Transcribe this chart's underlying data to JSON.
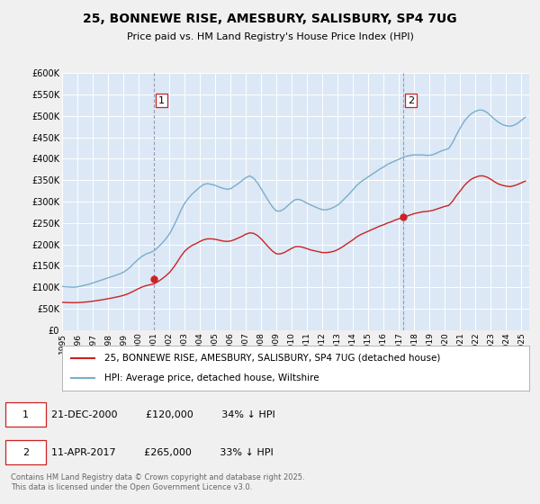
{
  "title": "25, BONNEWE RISE, AMESBURY, SALISBURY, SP4 7UG",
  "subtitle": "Price paid vs. HM Land Registry's House Price Index (HPI)",
  "ylim": [
    0,
    600000
  ],
  "xlim_start": 1995.0,
  "xlim_end": 2025.5,
  "yticks": [
    0,
    50000,
    100000,
    150000,
    200000,
    250000,
    300000,
    350000,
    400000,
    450000,
    500000,
    550000,
    600000
  ],
  "ytick_labels": [
    "£0",
    "£50K",
    "£100K",
    "£150K",
    "£200K",
    "£250K",
    "£300K",
    "£350K",
    "£400K",
    "£450K",
    "£500K",
    "£550K",
    "£600K"
  ],
  "fig_facecolor": "#f0f0f0",
  "plot_background": "#dce8f5",
  "grid_color": "#ffffff",
  "red_line_color": "#cc2222",
  "blue_line_color": "#7aadcc",
  "vline_color": "#aaaacc",
  "marker1_year": 2001.0,
  "marker1_price": 120000,
  "marker2_year": 2017.27,
  "marker2_price": 265000,
  "legend_label_red": "25, BONNEWE RISE, AMESBURY, SALISBURY, SP4 7UG (detached house)",
  "legend_label_blue": "HPI: Average price, detached house, Wiltshire",
  "footer": "Contains HM Land Registry data © Crown copyright and database right 2025.\nThis data is licensed under the Open Government Licence v3.0.",
  "hpi_data": [
    [
      1995.0,
      102000
    ],
    [
      1995.25,
      101000
    ],
    [
      1995.5,
      100500
    ],
    [
      1995.75,
      100000
    ],
    [
      1996.0,
      101000
    ],
    [
      1996.25,
      103000
    ],
    [
      1996.5,
      105000
    ],
    [
      1996.75,
      107000
    ],
    [
      1997.0,
      110000
    ],
    [
      1997.25,
      113000
    ],
    [
      1997.5,
      116000
    ],
    [
      1997.75,
      119000
    ],
    [
      1998.0,
      122000
    ],
    [
      1998.25,
      125000
    ],
    [
      1998.5,
      128000
    ],
    [
      1998.75,
      131000
    ],
    [
      1999.0,
      135000
    ],
    [
      1999.25,
      141000
    ],
    [
      1999.5,
      149000
    ],
    [
      1999.75,
      158000
    ],
    [
      2000.0,
      166000
    ],
    [
      2000.25,
      173000
    ],
    [
      2000.5,
      178000
    ],
    [
      2000.75,
      181000
    ],
    [
      2001.0,
      185000
    ],
    [
      2001.25,
      193000
    ],
    [
      2001.5,
      202000
    ],
    [
      2001.75,
      212000
    ],
    [
      2002.0,
      224000
    ],
    [
      2002.25,
      240000
    ],
    [
      2002.5,
      259000
    ],
    [
      2002.75,
      279000
    ],
    [
      2003.0,
      296000
    ],
    [
      2003.25,
      308000
    ],
    [
      2003.5,
      318000
    ],
    [
      2003.75,
      326000
    ],
    [
      2004.0,
      334000
    ],
    [
      2004.25,
      340000
    ],
    [
      2004.5,
      342000
    ],
    [
      2004.75,
      340000
    ],
    [
      2005.0,
      338000
    ],
    [
      2005.25,
      334000
    ],
    [
      2005.5,
      331000
    ],
    [
      2005.75,
      329000
    ],
    [
      2006.0,
      330000
    ],
    [
      2006.25,
      336000
    ],
    [
      2006.5,
      342000
    ],
    [
      2006.75,
      349000
    ],
    [
      2007.0,
      356000
    ],
    [
      2007.25,
      360000
    ],
    [
      2007.5,
      355000
    ],
    [
      2007.75,
      344000
    ],
    [
      2008.0,
      330000
    ],
    [
      2008.25,
      315000
    ],
    [
      2008.5,
      300000
    ],
    [
      2008.75,
      287000
    ],
    [
      2009.0,
      278000
    ],
    [
      2009.25,
      278000
    ],
    [
      2009.5,
      283000
    ],
    [
      2009.75,
      291000
    ],
    [
      2010.0,
      299000
    ],
    [
      2010.25,
      305000
    ],
    [
      2010.5,
      305000
    ],
    [
      2010.75,
      301000
    ],
    [
      2011.0,
      296000
    ],
    [
      2011.25,
      292000
    ],
    [
      2011.5,
      288000
    ],
    [
      2011.75,
      284000
    ],
    [
      2012.0,
      281000
    ],
    [
      2012.25,
      281000
    ],
    [
      2012.5,
      283000
    ],
    [
      2012.75,
      287000
    ],
    [
      2013.0,
      292000
    ],
    [
      2013.25,
      300000
    ],
    [
      2013.5,
      309000
    ],
    [
      2013.75,
      318000
    ],
    [
      2014.0,
      328000
    ],
    [
      2014.25,
      338000
    ],
    [
      2014.5,
      346000
    ],
    [
      2014.75,
      352000
    ],
    [
      2015.0,
      358000
    ],
    [
      2015.25,
      364000
    ],
    [
      2015.5,
      370000
    ],
    [
      2015.75,
      376000
    ],
    [
      2016.0,
      381000
    ],
    [
      2016.25,
      387000
    ],
    [
      2016.5,
      391000
    ],
    [
      2016.75,
      395000
    ],
    [
      2017.0,
      399000
    ],
    [
      2017.25,
      403000
    ],
    [
      2017.5,
      406000
    ],
    [
      2017.75,
      408000
    ],
    [
      2018.0,
      409000
    ],
    [
      2018.25,
      409000
    ],
    [
      2018.5,
      409000
    ],
    [
      2018.75,
      408000
    ],
    [
      2019.0,
      408000
    ],
    [
      2019.25,
      410000
    ],
    [
      2019.5,
      414000
    ],
    [
      2019.75,
      418000
    ],
    [
      2020.0,
      421000
    ],
    [
      2020.25,
      424000
    ],
    [
      2020.5,
      438000
    ],
    [
      2020.75,
      456000
    ],
    [
      2021.0,
      472000
    ],
    [
      2021.25,
      487000
    ],
    [
      2021.5,
      498000
    ],
    [
      2021.75,
      506000
    ],
    [
      2022.0,
      511000
    ],
    [
      2022.25,
      514000
    ],
    [
      2022.5,
      513000
    ],
    [
      2022.75,
      508000
    ],
    [
      2023.0,
      500000
    ],
    [
      2023.25,
      492000
    ],
    [
      2023.5,
      485000
    ],
    [
      2023.75,
      480000
    ],
    [
      2024.0,
      477000
    ],
    [
      2024.25,
      476000
    ],
    [
      2024.5,
      478000
    ],
    [
      2024.75,
      483000
    ],
    [
      2025.0,
      490000
    ],
    [
      2025.25,
      497000
    ]
  ],
  "price_data": [
    [
      1995.0,
      65000
    ],
    [
      1995.25,
      64500
    ],
    [
      1995.5,
      64200
    ],
    [
      1995.75,
      64000
    ],
    [
      1996.0,
      64200
    ],
    [
      1996.25,
      64800
    ],
    [
      1996.5,
      65500
    ],
    [
      1996.75,
      66300
    ],
    [
      1997.0,
      67500
    ],
    [
      1997.25,
      68800
    ],
    [
      1997.5,
      70200
    ],
    [
      1997.75,
      71700
    ],
    [
      1998.0,
      73300
    ],
    [
      1998.25,
      75000
    ],
    [
      1998.5,
      76800
    ],
    [
      1998.75,
      78700
    ],
    [
      1999.0,
      81000
    ],
    [
      1999.25,
      84000
    ],
    [
      1999.5,
      88000
    ],
    [
      1999.75,
      92500
    ],
    [
      2000.0,
      97000
    ],
    [
      2000.25,
      101000
    ],
    [
      2000.5,
      104000
    ],
    [
      2000.75,
      106000
    ],
    [
      2001.0,
      108000
    ],
    [
      2001.25,
      113000
    ],
    [
      2001.5,
      119000
    ],
    [
      2001.75,
      126000
    ],
    [
      2002.0,
      134000
    ],
    [
      2002.25,
      145000
    ],
    [
      2002.5,
      158000
    ],
    [
      2002.75,
      172000
    ],
    [
      2003.0,
      184000
    ],
    [
      2003.25,
      192000
    ],
    [
      2003.5,
      198000
    ],
    [
      2003.75,
      202000
    ],
    [
      2004.0,
      207000
    ],
    [
      2004.25,
      211000
    ],
    [
      2004.5,
      213000
    ],
    [
      2004.75,
      213000
    ],
    [
      2005.0,
      212000
    ],
    [
      2005.25,
      210000
    ],
    [
      2005.5,
      208000
    ],
    [
      2005.75,
      207000
    ],
    [
      2006.0,
      208000
    ],
    [
      2006.25,
      211000
    ],
    [
      2006.5,
      215000
    ],
    [
      2006.75,
      219000
    ],
    [
      2007.0,
      224000
    ],
    [
      2007.25,
      227000
    ],
    [
      2007.5,
      226000
    ],
    [
      2007.75,
      221000
    ],
    [
      2008.0,
      213000
    ],
    [
      2008.25,
      203000
    ],
    [
      2008.5,
      193000
    ],
    [
      2008.75,
      184000
    ],
    [
      2009.0,
      178000
    ],
    [
      2009.25,
      178000
    ],
    [
      2009.5,
      181000
    ],
    [
      2009.75,
      186000
    ],
    [
      2010.0,
      191000
    ],
    [
      2010.25,
      195000
    ],
    [
      2010.5,
      195000
    ],
    [
      2010.75,
      193000
    ],
    [
      2011.0,
      190000
    ],
    [
      2011.25,
      187000
    ],
    [
      2011.5,
      185000
    ],
    [
      2011.75,
      183000
    ],
    [
      2012.0,
      181000
    ],
    [
      2012.25,
      181000
    ],
    [
      2012.5,
      182000
    ],
    [
      2012.75,
      184000
    ],
    [
      2013.0,
      188000
    ],
    [
      2013.25,
      193000
    ],
    [
      2013.5,
      199000
    ],
    [
      2013.75,
      205000
    ],
    [
      2014.0,
      211000
    ],
    [
      2014.25,
      218000
    ],
    [
      2014.5,
      223000
    ],
    [
      2014.75,
      227000
    ],
    [
      2015.0,
      231000
    ],
    [
      2015.25,
      235000
    ],
    [
      2015.5,
      239000
    ],
    [
      2015.75,
      243000
    ],
    [
      2016.0,
      246000
    ],
    [
      2016.25,
      250000
    ],
    [
      2016.5,
      253000
    ],
    [
      2016.75,
      257000
    ],
    [
      2017.0,
      260000
    ],
    [
      2017.25,
      263000
    ],
    [
      2017.5,
      266000
    ],
    [
      2017.75,
      269000
    ],
    [
      2018.0,
      272000
    ],
    [
      2018.25,
      274000
    ],
    [
      2018.5,
      276000
    ],
    [
      2018.75,
      277000
    ],
    [
      2019.0,
      278000
    ],
    [
      2019.25,
      280000
    ],
    [
      2019.5,
      283000
    ],
    [
      2019.75,
      286000
    ],
    [
      2020.0,
      289000
    ],
    [
      2020.25,
      291000
    ],
    [
      2020.5,
      301000
    ],
    [
      2020.75,
      314000
    ],
    [
      2021.0,
      325000
    ],
    [
      2021.25,
      337000
    ],
    [
      2021.5,
      346000
    ],
    [
      2021.75,
      353000
    ],
    [
      2022.0,
      357000
    ],
    [
      2022.25,
      360000
    ],
    [
      2022.5,
      360000
    ],
    [
      2022.75,
      357000
    ],
    [
      2023.0,
      352000
    ],
    [
      2023.25,
      346000
    ],
    [
      2023.5,
      341000
    ],
    [
      2023.75,
      338000
    ],
    [
      2024.0,
      336000
    ],
    [
      2024.25,
      335000
    ],
    [
      2024.5,
      337000
    ],
    [
      2024.75,
      340000
    ],
    [
      2025.0,
      344000
    ],
    [
      2025.25,
      348000
    ]
  ]
}
